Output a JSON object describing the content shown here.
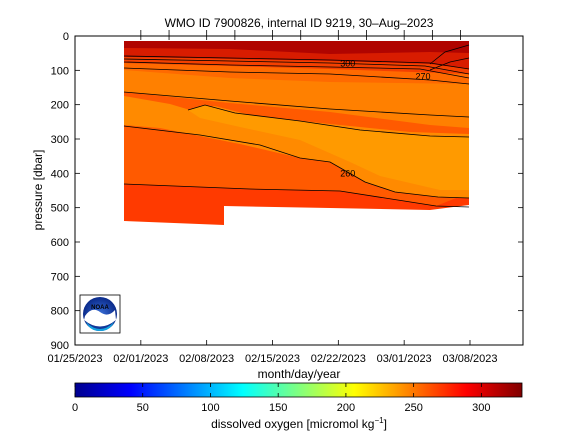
{
  "chart_data": {
    "type": "heatmap",
    "title": "WMO ID 7900826, internal ID 9219, 30–Aug–2023",
    "xlabel": "month/day/year",
    "ylabel": "pressure [dbar]",
    "x_ticks": [
      "01/25/2023",
      "02/01/2023",
      "02/08/2023",
      "02/15/2023",
      "02/22/2023",
      "03/01/2023",
      "03/08/2023"
    ],
    "y_ticks": [
      "0",
      "100",
      "200",
      "300",
      "400",
      "500",
      "600",
      "700",
      "800",
      "900"
    ],
    "ylim": [
      900,
      0
    ],
    "colorbar": {
      "label_prefix": "dissolved oxygen [micromol kg",
      "label_exp": "−1",
      "label_suffix": "]",
      "range": [
        0,
        330
      ],
      "ticks": [
        "0",
        "50",
        "100",
        "150",
        "200",
        "250",
        "300"
      ]
    },
    "contour_labels": [
      {
        "text": "300",
        "x": "2023-02-23",
        "p": 80
      },
      {
        "text": "270",
        "x": "2023-03-03",
        "p": 118
      },
      {
        "text": "260",
        "x": "2023-02-23",
        "p": 400
      }
    ],
    "profile_dates": [
      "2023-02-01",
      "2023-02-04",
      "2023-02-08",
      "2023-02-11",
      "2023-02-15",
      "2023-02-18",
      "2023-02-22",
      "2023-02-25",
      "2023-03-01",
      "2023-03-04",
      "2023-03-07"
    ],
    "logo_text": "NOAA"
  }
}
